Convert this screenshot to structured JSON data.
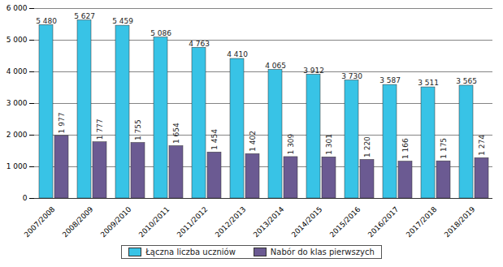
{
  "chart_data": {
    "type": "bar",
    "categories": [
      "2007/2008",
      "2008/2009",
      "2009/2010",
      "2010/2011",
      "2011/2012",
      "2012/2013",
      "2013/2014",
      "2014/2015",
      "2015/2016",
      "2016/2017",
      "2017/2018",
      "2018/2019"
    ],
    "series": [
      {
        "name": "Łączna liczba uczniów",
        "color": "#38c3e6",
        "values": [
          5480,
          5627,
          5459,
          5086,
          4763,
          4410,
          4065,
          3912,
          3730,
          3587,
          3511,
          3565
        ],
        "value_labels": [
          "5 480",
          "5 627",
          "5 459",
          "5 086",
          "4 763",
          "4 410",
          "4 065",
          "3 912",
          "3 730",
          "3 587",
          "3 511",
          "3 565"
        ]
      },
      {
        "name": "Nabór do klas pierwszych",
        "color": "#6b5a92",
        "values": [
          1977,
          1777,
          1755,
          1654,
          1454,
          1402,
          1309,
          1301,
          1220,
          1166,
          1175,
          1274
        ],
        "value_labels": [
          "1 977",
          "1 777",
          "1 755",
          "1 654",
          "1 454",
          "1 402",
          "1 309",
          "1 301",
          "1 220",
          "1 166",
          "1 175",
          "1 274"
        ]
      }
    ],
    "ylim": [
      0,
      6000
    ],
    "yticks": [
      0,
      {
        "value": 1000,
        "label": "1 000"
      },
      {
        "value": 2000,
        "label": "2 000"
      },
      {
        "value": 3000,
        "label": "3 000"
      },
      {
        "value": 4000,
        "label": "4 000"
      },
      {
        "value": 5000,
        "label": "5 000"
      },
      {
        "value": 6000,
        "label": "6 000"
      }
    ],
    "grid": true,
    "data_labels": true,
    "legend": "bottom"
  }
}
